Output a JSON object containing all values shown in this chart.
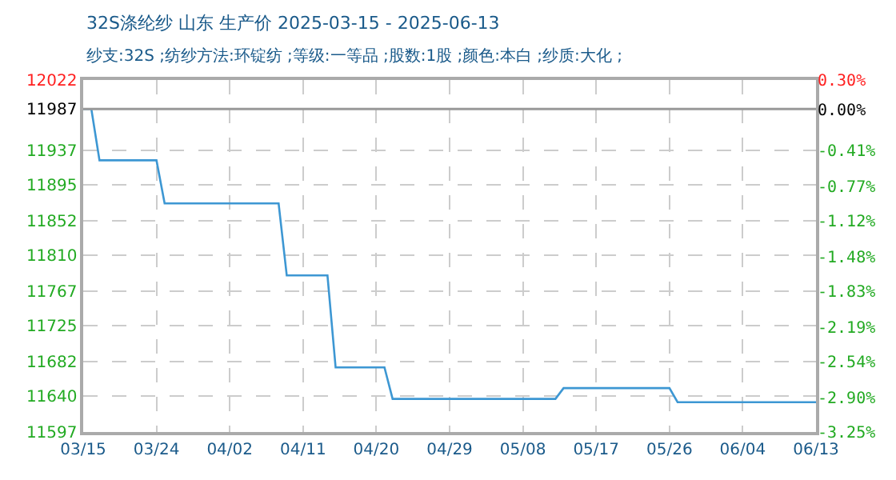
{
  "chart_data": {
    "type": "line",
    "title": "32S涤纶纱 山东 生产价 2025-03-15 - 2025-06-13",
    "subtitle": "纱支:32S ;纺纱方法:环锭纺 ;等级:一等品 ;股数:1股 ;颜色:本白 ;纱质:大化 ;",
    "x": [
      "2025-03-15",
      "2025-03-16",
      "2025-03-17",
      "2025-03-24",
      "2025-03-25",
      "2025-04-08",
      "2025-04-09",
      "2025-04-14",
      "2025-04-15",
      "2025-04-21",
      "2025-04-22",
      "2025-05-12",
      "2025-05-13",
      "2025-05-26",
      "2025-05-27",
      "2025-06-13"
    ],
    "series": [
      {
        "color": "#3d97d3",
        "values": [
          11987,
          11987,
          11925,
          11925,
          11873,
          11873,
          11786,
          11786,
          11675,
          11675,
          11637,
          11637,
          11650,
          11650,
          11633,
          11633
        ]
      }
    ],
    "xlim": [
      "2025-03-15",
      "2025-06-13"
    ],
    "xticks": [
      {
        "value": "2025-03-15",
        "label": "03/15"
      },
      {
        "value": "2025-03-24",
        "label": "03/24"
      },
      {
        "value": "2025-04-02",
        "label": "04/02"
      },
      {
        "value": "2025-04-11",
        "label": "04/11"
      },
      {
        "value": "2025-04-20",
        "label": "04/20"
      },
      {
        "value": "2025-04-29",
        "label": "04/29"
      },
      {
        "value": "2025-05-08",
        "label": "05/08"
      },
      {
        "value": "2025-05-17",
        "label": "05/17"
      },
      {
        "value": "2025-05-26",
        "label": "05/26"
      },
      {
        "value": "2025-06-04",
        "label": "06/04"
      },
      {
        "value": "2025-06-13",
        "label": "06/13"
      }
    ],
    "ylim": [
      11597,
      12022
    ],
    "yticks": [
      11597,
      11640,
      11682,
      11725,
      11767,
      11810,
      11852,
      11895,
      11937,
      11987,
      12022
    ],
    "y2lim": [
      -3.25,
      0.3
    ],
    "y2ticks": [
      {
        "value": -3.25,
        "label": "-3.25%"
      },
      {
        "value": -2.9,
        "label": "-2.90%"
      },
      {
        "value": -2.54,
        "label": "-2.54%"
      },
      {
        "value": -2.19,
        "label": "-2.19%"
      },
      {
        "value": -1.83,
        "label": "-1.83%"
      },
      {
        "value": -1.48,
        "label": "-1.48%"
      },
      {
        "value": -1.12,
        "label": "-1.12%"
      },
      {
        "value": -0.77,
        "label": "-0.77%"
      },
      {
        "value": -0.41,
        "label": "-0.41%"
      },
      {
        "value": 0,
        "label": "0.00%"
      },
      {
        "value": 0.3,
        "label": "0.30%"
      }
    ],
    "ref_lines": [
      {
        "axis": "y",
        "value": 11987,
        "color": "#999999"
      }
    ],
    "grid": true,
    "legend": false,
    "marker": "none",
    "line_style": "solid"
  }
}
